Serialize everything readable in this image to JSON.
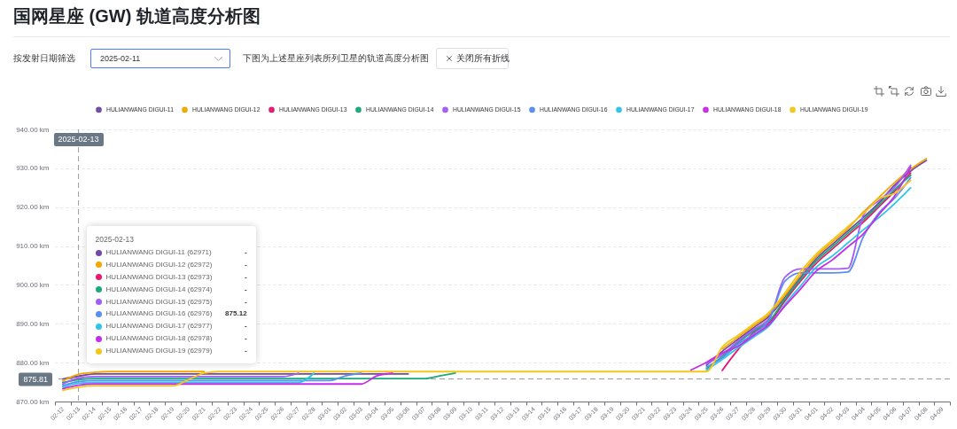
{
  "chart_data": {
    "type": "line",
    "title": "国网星座 (GW) 轨道高度分析图",
    "subtitle": "下图为上述星座列表所列卫星的轨道高度分析图",
    "annotations": [
      "按发射日期筛选",
      "2025-02-11",
      "关闭所有折线",
      "2025-02-13",
      "HULIANWANG DIGUI-11 (62971)",
      "-",
      "HULIANWANG DIGUI-12 (62972)",
      "-",
      "HULIANWANG DIGUI-13 (62973)",
      "-",
      "HULIANWANG DIGUI-14 (62974)",
      "-",
      "HULIANWANG DIGUI-15 (62975)",
      "-",
      "HULIANWANG DIGUI-16 (62976)",
      "875.12",
      "HULIANWANG DIGUI-17 (62977)",
      "-",
      "HULIANWANG DIGUI-18 (62978)",
      "-",
      "HULIANWANG DIGUI-19 (62979)",
      "-"
    ],
    "categories": [
      "02-12",
      "02-13",
      "02-14",
      "02-15",
      "02-16",
      "02-17",
      "02-18",
      "02-19",
      "02-20",
      "02-21",
      "02-22",
      "02-23",
      "02-24",
      "02-25",
      "02-26",
      "02-27",
      "02-28",
      "03-01",
      "03-02",
      "03-03",
      "03-04",
      "03-05",
      "03-06",
      "03-07",
      "03-08",
      "03-09",
      "03-10",
      "03-11",
      "03-12",
      "03-13",
      "03-14",
      "03-15",
      "03-16",
      "03-17",
      "03-18",
      "03-19",
      "03-20",
      "03-21",
      "03-22",
      "03-23",
      "03-24",
      "03-25",
      "03-26",
      "03-27",
      "03-28",
      "03-29",
      "03-30",
      "03-31",
      "04-01",
      "04-02",
      "04-03",
      "04-04",
      "04-05",
      "04-06",
      "04-07",
      "04-08",
      "04-09"
    ],
    "series": [
      {
        "name": "HULIANWANG DIGUI-11",
        "color": "#6f4aa6",
        "values": [
          875.8,
          876.5,
          877.1,
          877.1,
          877.1,
          877.1,
          877.1,
          877.1,
          877.1,
          877.1,
          877.1,
          877.1,
          877.1,
          877.1,
          877.1,
          877.1,
          877.1,
          877.1,
          877.1,
          877.1,
          877.1,
          877.1,
          877.1,
          null,
          null,
          null,
          null,
          null,
          null,
          null,
          null,
          null,
          null,
          null,
          null,
          null,
          null,
          null,
          null,
          null,
          null,
          879.3,
          882.9,
          886.0,
          889.0,
          892.0,
          896.9,
          902.0,
          906.8,
          910.4,
          913.9,
          917.4,
          921.2,
          925.8,
          929.3,
          932.0,
          null
        ]
      },
      {
        "name": "HULIANWANG DIGUI-12",
        "color": "#f5a700",
        "values": [
          875.3,
          877.0,
          877.5,
          877.7,
          877.7,
          877.7,
          877.7,
          877.7,
          877.7,
          877.7,
          null,
          null,
          null,
          null,
          null,
          null,
          null,
          null,
          null,
          null,
          null,
          null,
          null,
          null,
          null,
          null,
          null,
          null,
          null,
          null,
          null,
          null,
          null,
          null,
          null,
          null,
          null,
          null,
          null,
          null,
          null,
          null,
          883.5,
          886.5,
          889.5,
          892.5,
          897.4,
          902.6,
          907.4,
          911.0,
          914.5,
          918.8,
          922.6,
          926.4,
          929.8,
          932.5,
          null
        ]
      },
      {
        "name": "HULIANWANG DIGUI-13",
        "color": "#e8186f",
        "values": [
          null,
          null,
          null,
          null,
          null,
          null,
          null,
          null,
          null,
          null,
          null,
          null,
          null,
          null,
          null,
          null,
          null,
          null,
          null,
          null,
          null,
          null,
          null,
          null,
          null,
          null,
          null,
          null,
          null,
          null,
          null,
          null,
          null,
          null,
          null,
          null,
          null,
          null,
          null,
          null,
          null,
          null,
          878.0,
          883.3,
          887.8,
          890.3,
          895.9,
          901.0,
          905.6,
          909.2,
          912.7,
          916.2,
          920.2,
          924.2,
          928.8,
          null,
          null
        ]
      },
      {
        "name": "HULIANWANG DIGUI-14",
        "color": "#1aa97a",
        "values": [
          874.9,
          875.6,
          875.9,
          875.9,
          875.9,
          875.9,
          875.9,
          875.9,
          875.9,
          875.9,
          875.9,
          875.9,
          875.9,
          875.9,
          875.9,
          875.9,
          875.9,
          875.9,
          875.9,
          875.9,
          875.9,
          875.9,
          875.9,
          875.9,
          876.6,
          877.3,
          null,
          null,
          null,
          null,
          null,
          null,
          null,
          null,
          null,
          null,
          null,
          null,
          null,
          null,
          null,
          878.5,
          881.6,
          885.1,
          888.2,
          890.7,
          896.4,
          901.5,
          906.2,
          909.8,
          913.3,
          916.8,
          920.7,
          924.6,
          928.2,
          null,
          null
        ]
      },
      {
        "name": "HULIANWANG DIGUI-15",
        "color": "#a35cf6",
        "values": [
          874.5,
          876.0,
          876.4,
          876.4,
          876.4,
          876.4,
          876.4,
          876.4,
          876.4,
          876.4,
          876.4,
          876.4,
          876.4,
          876.4,
          876.4,
          877.3,
          null,
          null,
          null,
          null,
          null,
          null,
          null,
          null,
          null,
          null,
          null,
          null,
          null,
          null,
          null,
          null,
          null,
          null,
          null,
          null,
          null,
          null,
          null,
          null,
          null,
          879.7,
          882.1,
          885.5,
          888.6,
          891.5,
          902.0,
          904.1,
          904.1,
          904.1,
          904.3,
          918.0,
          921.8,
          925.2,
          930.8,
          null,
          null
        ]
      },
      {
        "name": "HULIANWANG DIGUI-16",
        "color": "#5b8ef2",
        "values": [
          874.1,
          875.12,
          875.4,
          875.4,
          875.4,
          875.4,
          875.4,
          875.4,
          875.4,
          875.4,
          875.4,
          875.4,
          875.4,
          875.4,
          875.4,
          875.4,
          875.4,
          875.4,
          876.6,
          877.3,
          null,
          null,
          null,
          null,
          null,
          null,
          null,
          null,
          null,
          null,
          null,
          null,
          null,
          null,
          null,
          null,
          null,
          null,
          null,
          null,
          null,
          878.9,
          881.2,
          884.7,
          887.4,
          891.1,
          901.0,
          903.1,
          903.1,
          903.1,
          903.3,
          912.5,
          918.6,
          922.4,
          927.6,
          null,
          null
        ]
      },
      {
        "name": "HULIANWANG DIGUI-17",
        "color": "#2fc5e9",
        "values": [
          873.7,
          874.7,
          874.9,
          874.9,
          874.9,
          874.9,
          874.9,
          874.9,
          874.9,
          874.9,
          874.9,
          874.9,
          874.9,
          874.9,
          874.9,
          874.9,
          877.3,
          null,
          null,
          null,
          null,
          null,
          null,
          null,
          null,
          null,
          null,
          null,
          null,
          null,
          null,
          null,
          null,
          null,
          null,
          null,
          null,
          null,
          null,
          null,
          null,
          878.1,
          880.8,
          883.8,
          886.6,
          889.5,
          895.0,
          899.8,
          904.6,
          907.4,
          910.8,
          914.2,
          917.4,
          921.0,
          925.0,
          null,
          null
        ]
      },
      {
        "name": "HULIANWANG DIGUI-18",
        "color": "#c42ee9",
        "values": [
          873.3,
          874.2,
          874.5,
          874.5,
          874.5,
          874.5,
          874.5,
          874.5,
          874.5,
          874.5,
          874.5,
          874.5,
          874.5,
          874.5,
          874.5,
          874.5,
          874.5,
          874.5,
          874.5,
          874.5,
          876.6,
          877.3,
          null,
          null,
          null,
          null,
          null,
          null,
          null,
          null,
          null,
          null,
          null,
          null,
          null,
          null,
          null,
          null,
          null,
          null,
          878.1,
          880.1,
          882.5,
          884.2,
          887.0,
          889.9,
          894.6,
          899.0,
          903.6,
          906.4,
          909.8,
          913.2,
          918.2,
          923.0,
          930.3,
          null,
          null
        ]
      },
      {
        "name": "HULIANWANG DIGUI-19",
        "color": "#f5c61a",
        "values": [
          872.9,
          873.7,
          874.0,
          874.0,
          874.0,
          874.0,
          874.0,
          874.0,
          875.6,
          877.3,
          877.7,
          877.7,
          877.7,
          877.7,
          877.7,
          877.7,
          877.7,
          877.7,
          877.7,
          877.7,
          877.7,
          877.7,
          877.7,
          877.7,
          877.7,
          877.7,
          877.7,
          877.7,
          877.7,
          877.7,
          877.7,
          877.7,
          877.7,
          877.7,
          877.7,
          877.7,
          877.7,
          877.7,
          877.7,
          877.7,
          877.7,
          877.7,
          884.0,
          887.0,
          890.0,
          893.0,
          898.0,
          903.5,
          908.0,
          911.5,
          915.0,
          918.4,
          922.2,
          923.6,
          926.9,
          null,
          null
        ]
      }
    ],
    "ylim": [
      870,
      940
    ],
    "yticks": [
      {
        "value": 870,
        "label": "870.00 km"
      },
      {
        "value": 880,
        "label": "880.00 km"
      },
      {
        "value": 890,
        "label": "890.00 km"
      },
      {
        "value": 900,
        "label": "900.00 km"
      },
      {
        "value": 910,
        "label": "910.00 km"
      },
      {
        "value": 920,
        "label": "920.00 km"
      },
      {
        "value": 930,
        "label": "930.00 km"
      },
      {
        "value": 940,
        "label": "940.00 km"
      }
    ],
    "grid": "y",
    "legend": "top",
    "ref_lines": [
      {
        "axis": "x",
        "value": "02-13",
        "label": "2025-02-13",
        "color": "#9a9a9a",
        "line_style": "dashed"
      },
      {
        "axis": "y",
        "value": 875.81,
        "label": "875.81",
        "color": "#9a9a9a",
        "line_style": "dashed"
      }
    ]
  }
}
